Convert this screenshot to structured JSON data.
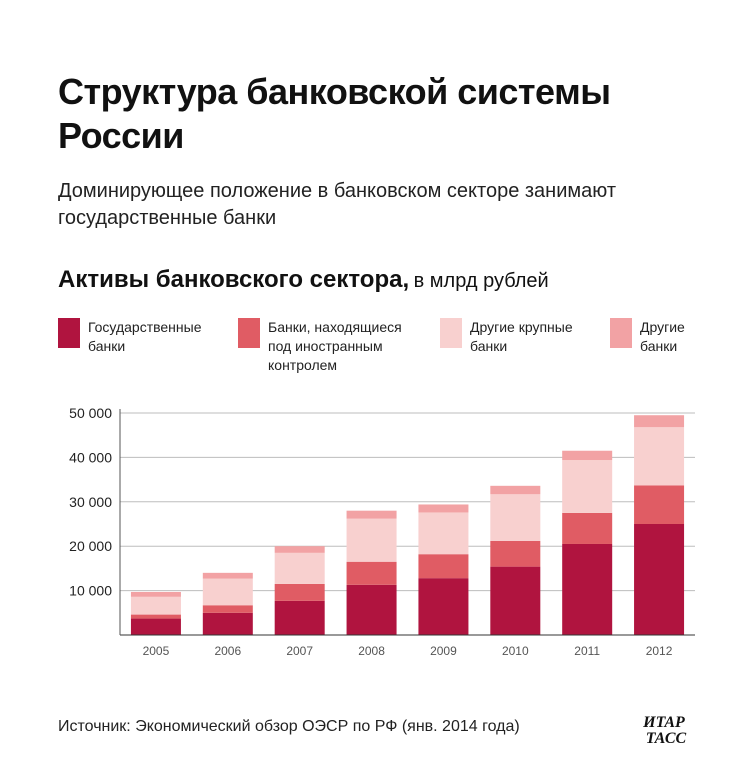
{
  "title": "Структура банковской системы России",
  "subtitle": "Доминирующее положение в банковском секторе занимают государственные банки",
  "section_title": "Активы банковского сектора,",
  "section_unit": "в млрд рублей",
  "source": "Источник: Экономический обзор ОЭСР по РФ (янв. 2014 года)",
  "logo": {
    "line1": "ИТАР",
    "line2": "ТАСС"
  },
  "legend": [
    {
      "label": "Государственные\nбанки",
      "color": "#b0143f"
    },
    {
      "label": "Банки, находящиеся\nпод иностранным\nконтролем",
      "color": "#e05c64"
    },
    {
      "label": "Другие крупные\nбанки",
      "color": "#f8d0cf"
    },
    {
      "label": "Другие\nбанки",
      "color": "#f2a2a4"
    }
  ],
  "chart_data": {
    "type": "bar",
    "stacked": true,
    "categories": [
      "2005",
      "2006",
      "2007",
      "2008",
      "2009",
      "2010",
      "2011",
      "2012"
    ],
    "series": [
      {
        "name": "Государственные банки",
        "color": "#b0143f",
        "values": [
          3700,
          5000,
          7700,
          11300,
          12800,
          15400,
          20500,
          25000
        ]
      },
      {
        "name": "Банки, находящиеся под иностранным контролем",
        "color": "#e05c64",
        "values": [
          900,
          1700,
          3800,
          5200,
          5400,
          5800,
          7000,
          8700
        ]
      },
      {
        "name": "Другие крупные банки",
        "color": "#f8d0cf",
        "values": [
          4000,
          6000,
          7000,
          9700,
          9400,
          10500,
          11900,
          13100
        ]
      },
      {
        "name": "Другие банки",
        "color": "#f2a2a4",
        "values": [
          1100,
          1300,
          1500,
          1800,
          1800,
          1900,
          2100,
          2700
        ]
      }
    ],
    "yticks": [
      10000,
      20000,
      30000,
      40000,
      50000
    ],
    "ytick_labels": [
      "10 000",
      "20 000",
      "30 000",
      "40 000",
      "50 000"
    ],
    "ylim": [
      0,
      50000
    ],
    "xlabel": "",
    "ylabel": "",
    "grid": true,
    "legend_position": "top"
  }
}
